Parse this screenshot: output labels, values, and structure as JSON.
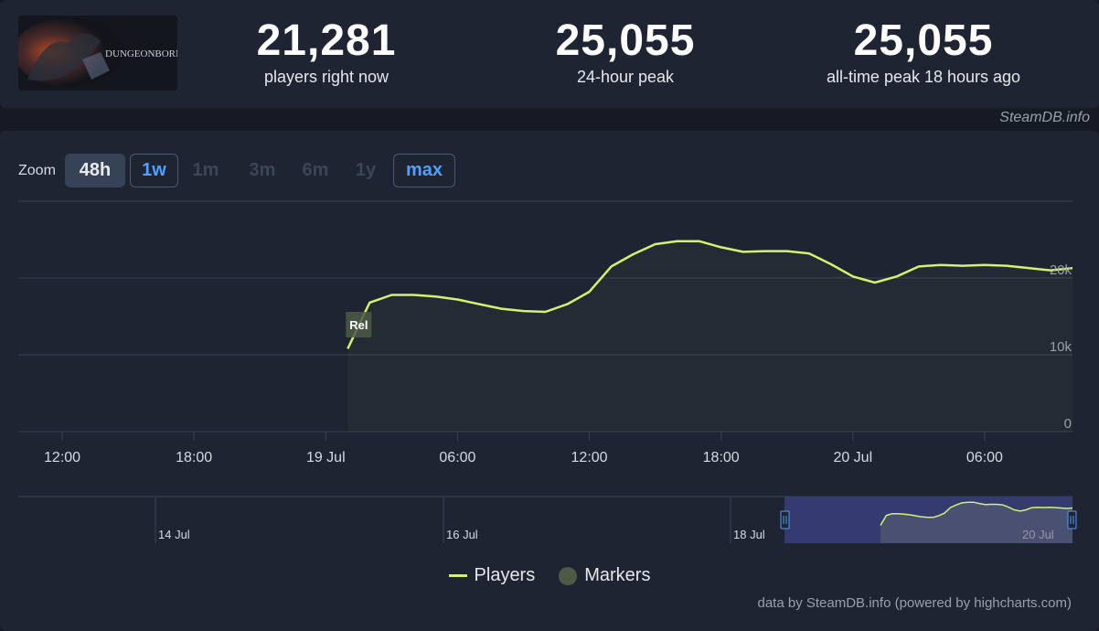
{
  "game": {
    "name": "DUNGEONBORNE"
  },
  "stats": [
    {
      "value": "21,281",
      "label": "players right now"
    },
    {
      "value": "25,055",
      "label": "24-hour peak"
    },
    {
      "value": "25,055",
      "label": "all-time peak 18 hours ago"
    }
  ],
  "credit_top": "SteamDB.info",
  "zoom": {
    "label": "Zoom",
    "buttons": [
      {
        "label": "48h",
        "state": "active"
      },
      {
        "label": "1w",
        "state": "outline"
      },
      {
        "label": "1m",
        "state": "disabled"
      },
      {
        "label": "3m",
        "state": "disabled"
      },
      {
        "label": "6m",
        "state": "disabled"
      },
      {
        "label": "1y",
        "state": "disabled"
      },
      {
        "label": "max",
        "state": "outline"
      }
    ]
  },
  "legend": {
    "players": "Players",
    "markers": "Markers"
  },
  "credit_bottom": "data by SteamDB.info (powered by highcharts.com)",
  "colors": {
    "line": "#d4f26b",
    "marker": "#4e5a45",
    "navigator_selection": "#383f7a"
  },
  "chart_data": {
    "type": "line",
    "title": "",
    "xlabel": "",
    "ylabel": "",
    "x_unit": "hours since 18 Jul 10:00",
    "xlim": [
      0,
      48
    ],
    "ylim": [
      0,
      20000
    ],
    "y_ticks": [
      {
        "value": 0,
        "label": "0"
      },
      {
        "value": 10000,
        "label": "10k"
      },
      {
        "value": 20000,
        "label": "20k"
      }
    ],
    "x_ticks": [
      {
        "x": 2,
        "label": "12:00"
      },
      {
        "x": 8,
        "label": "18:00"
      },
      {
        "x": 14,
        "label": "19 Jul"
      },
      {
        "x": 20,
        "label": "06:00"
      },
      {
        "x": 26,
        "label": "12:00"
      },
      {
        "x": 32,
        "label": "18:00"
      },
      {
        "x": 38,
        "label": "20 Jul"
      },
      {
        "x": 44,
        "label": "06:00"
      }
    ],
    "series": [
      {
        "name": "Players",
        "x": [
          15.0,
          16.0,
          17.0,
          18.0,
          19.0,
          20.0,
          21.0,
          22.0,
          23.0,
          24.0,
          25.0,
          26.0,
          27.0,
          28.0,
          29.0,
          30.0,
          31.0,
          32.0,
          33.0,
          34.0,
          35.0,
          36.0,
          37.0,
          38.0,
          39.0,
          40.0,
          41.0,
          42.0,
          43.0,
          44.0,
          45.0,
          46.0,
          47.0,
          48.0
        ],
        "values": [
          10800,
          16800,
          17800,
          17800,
          17600,
          17200,
          16600,
          16000,
          15700,
          15600,
          16600,
          18200,
          21500,
          23100,
          24400,
          24800,
          24800,
          24000,
          23400,
          23500,
          23500,
          23200,
          21800,
          20200,
          19400,
          20200,
          21500,
          21700,
          21600,
          21700,
          21600,
          21300,
          21000,
          21300
        ]
      }
    ],
    "markers": [
      {
        "x": 15.5,
        "label": "Rel"
      }
    ],
    "navigator": {
      "x_ticks": [
        {
          "label": "14 Jul"
        },
        {
          "label": "16 Jul"
        },
        {
          "label": "18 Jul"
        },
        {
          "label": "20 Jul"
        }
      ]
    }
  }
}
